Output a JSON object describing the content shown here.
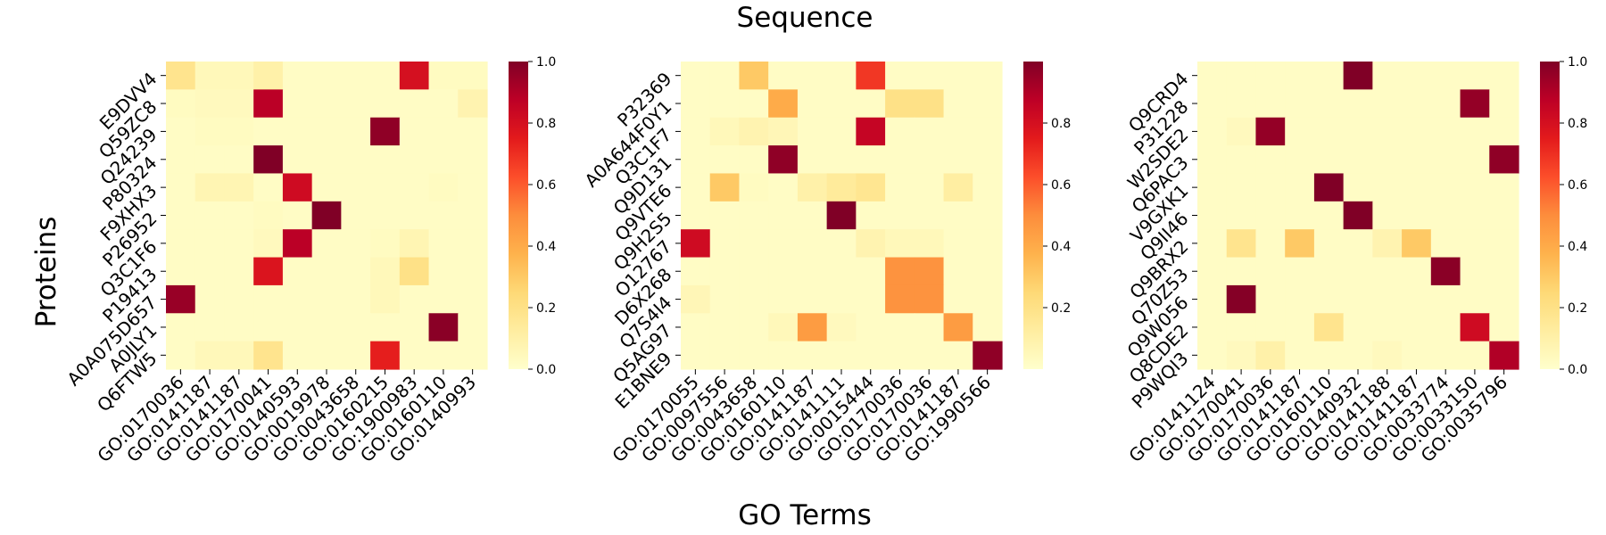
{
  "figure": {
    "title": "Sequence",
    "xlabel": "GO Terms",
    "ylabel": "Proteins"
  },
  "colormap": {
    "name": "YlOrRd",
    "stops": [
      "#ffffcc",
      "#ffeda0",
      "#fed976",
      "#feb24c",
      "#fd8d3c",
      "#fc4e2a",
      "#e31a1c",
      "#bd0026",
      "#800026"
    ]
  },
  "chart_data": [
    {
      "type": "heatmap",
      "rows": [
        "E9DVV4",
        "Q59ZC8",
        "Q24239",
        "P80324",
        "F9XHX3",
        "P26952",
        "Q3C1F6",
        "P19413",
        "A0A075D657",
        "A0JLY1",
        "Q6FTW5"
      ],
      "columns": [
        "GO:0170036",
        "GO:0141187",
        "GO:0141187",
        "GO:0170041",
        "GO:0140593",
        "GO:0019978",
        "GO:0043658",
        "GO:0160215",
        "GO:1900983",
        "GO:0160110",
        "GO:0140993"
      ],
      "values": [
        [
          0.18,
          0.05,
          0.05,
          0.1,
          0.02,
          0.02,
          0.02,
          0.02,
          0.8,
          0.03,
          0.03
        ],
        [
          0.03,
          0.04,
          0.04,
          0.88,
          0.02,
          0.02,
          0.02,
          0.02,
          0.02,
          0.02,
          0.08
        ],
        [
          0.02,
          0.03,
          0.03,
          0.02,
          0.02,
          0.02,
          0.02,
          0.97,
          0.02,
          0.02,
          0.02
        ],
        [
          0.02,
          0.02,
          0.02,
          1.0,
          0.02,
          0.02,
          0.02,
          0.02,
          0.02,
          0.02,
          0.02
        ],
        [
          0.02,
          0.07,
          0.07,
          0.02,
          0.82,
          0.02,
          0.02,
          0.02,
          0.02,
          0.03,
          0.02
        ],
        [
          0.02,
          0.02,
          0.02,
          0.03,
          0.02,
          1.0,
          0.02,
          0.02,
          0.02,
          0.02,
          0.02
        ],
        [
          0.02,
          0.02,
          0.02,
          0.04,
          0.88,
          0.02,
          0.02,
          0.03,
          0.07,
          0.02,
          0.02
        ],
        [
          0.02,
          0.02,
          0.02,
          0.78,
          0.02,
          0.02,
          0.02,
          0.05,
          0.2,
          0.02,
          0.02
        ],
        [
          0.95,
          0.02,
          0.02,
          0.02,
          0.02,
          0.02,
          0.02,
          0.05,
          0.02,
          0.02,
          0.02
        ],
        [
          0.02,
          0.02,
          0.02,
          0.02,
          0.02,
          0.02,
          0.02,
          0.02,
          0.02,
          0.98,
          0.02
        ],
        [
          0.02,
          0.05,
          0.05,
          0.18,
          0.02,
          0.02,
          0.02,
          0.74,
          0.02,
          0.02,
          0.02
        ]
      ],
      "colorbar": {
        "vmin": 0.0,
        "vmax": 1.0,
        "ticks": [
          0.0,
          0.2,
          0.4,
          0.6,
          0.8,
          1.0
        ],
        "tick_labels": [
          "0.0",
          "0.2",
          "0.4",
          "0.6",
          "0.8",
          "1.0"
        ]
      }
    },
    {
      "type": "heatmap",
      "rows": [
        "P32369",
        "A0A644F0Y1",
        "Q3C1F7",
        "Q9D131",
        "Q9VTE6",
        "Q9H2S5",
        "O12767",
        "D6X268",
        "Q7S4I4",
        "Q5AG97",
        "E1BNE9"
      ],
      "columns": [
        "GO:0170055",
        "GO:0097556",
        "GO:0043658",
        "GO:0160110",
        "GO:0141187",
        "GO:0141111",
        "GO:0015444",
        "GO:0170036",
        "GO:0170036",
        "GO:0141187",
        "GO:1990566"
      ],
      "values": [
        [
          0.02,
          0.02,
          0.3,
          0.02,
          0.02,
          0.02,
          0.68,
          0.02,
          0.02,
          0.02,
          0.02
        ],
        [
          0.02,
          0.02,
          0.02,
          0.4,
          0.02,
          0.02,
          0.02,
          0.2,
          0.2,
          0.02,
          0.02
        ],
        [
          0.02,
          0.05,
          0.08,
          0.06,
          0.02,
          0.02,
          0.85,
          0.02,
          0.02,
          0.02,
          0.02
        ],
        [
          0.02,
          0.02,
          0.02,
          0.97,
          0.02,
          0.02,
          0.02,
          0.02,
          0.02,
          0.02,
          0.02
        ],
        [
          0.02,
          0.3,
          0.03,
          0.02,
          0.1,
          0.14,
          0.17,
          0.02,
          0.02,
          0.12,
          0.02
        ],
        [
          0.02,
          0.02,
          0.02,
          0.02,
          0.02,
          1.0,
          0.02,
          0.02,
          0.02,
          0.02,
          0.02
        ],
        [
          0.82,
          0.02,
          0.02,
          0.02,
          0.02,
          0.02,
          0.08,
          0.05,
          0.05,
          0.02,
          0.02
        ],
        [
          0.02,
          0.02,
          0.02,
          0.02,
          0.02,
          0.02,
          0.02,
          0.48,
          0.48,
          0.02,
          0.02
        ],
        [
          0.06,
          0.02,
          0.02,
          0.02,
          0.02,
          0.02,
          0.02,
          0.48,
          0.48,
          0.02,
          0.02
        ],
        [
          0.02,
          0.02,
          0.02,
          0.05,
          0.45,
          0.04,
          0.02,
          0.02,
          0.02,
          0.45,
          0.02
        ],
        [
          0.02,
          0.02,
          0.02,
          0.02,
          0.02,
          0.02,
          0.02,
          0.02,
          0.02,
          0.02,
          0.97
        ]
      ],
      "colorbar": {
        "vmin": 0.0,
        "vmax": 1.0,
        "ticks": [
          0.2,
          0.4,
          0.6,
          0.8
        ],
        "tick_labels": [
          "0.2",
          "0.4",
          "0.6",
          "0.8"
        ]
      }
    },
    {
      "type": "heatmap",
      "rows": [
        "Q9CRD4",
        "P31228",
        "W2SDE2",
        "Q6PAC3",
        "V9GXK1",
        "Q9II46",
        "Q9BRX2",
        "Q70Z53",
        "Q9W056",
        "Q8CDE2",
        "P9WQI3"
      ],
      "columns": [
        "GO:0141124",
        "GO:0170041",
        "GO:0170036",
        "GO:0141187",
        "GO:0160110",
        "GO:0140932",
        "GO:0141188",
        "GO:0141187",
        "GO:0033774",
        "GO:0033150",
        "GO:0035796"
      ],
      "values": [
        [
          0.02,
          0.02,
          0.02,
          0.02,
          0.02,
          1.0,
          0.02,
          0.02,
          0.02,
          0.02,
          0.02
        ],
        [
          0.02,
          0.02,
          0.02,
          0.02,
          0.02,
          0.02,
          0.02,
          0.02,
          0.02,
          0.96,
          0.02
        ],
        [
          0.02,
          0.04,
          0.96,
          0.02,
          0.02,
          0.02,
          0.02,
          0.02,
          0.02,
          0.02,
          0.02
        ],
        [
          0.02,
          0.02,
          0.02,
          0.02,
          0.02,
          0.02,
          0.02,
          0.02,
          0.02,
          0.02,
          0.97
        ],
        [
          0.02,
          0.02,
          0.02,
          0.02,
          1.0,
          0.02,
          0.02,
          0.02,
          0.02,
          0.02,
          0.02
        ],
        [
          0.02,
          0.02,
          0.02,
          0.02,
          0.02,
          1.0,
          0.02,
          0.02,
          0.02,
          0.02,
          0.02
        ],
        [
          0.02,
          0.18,
          0.02,
          0.3,
          0.02,
          0.02,
          0.08,
          0.3,
          0.02,
          0.02,
          0.02
        ],
        [
          0.02,
          0.02,
          0.02,
          0.02,
          0.02,
          0.02,
          0.02,
          0.02,
          0.98,
          0.02,
          0.02
        ],
        [
          0.02,
          0.99,
          0.02,
          0.02,
          0.02,
          0.02,
          0.02,
          0.02,
          0.02,
          0.02,
          0.02
        ],
        [
          0.02,
          0.02,
          0.02,
          0.02,
          0.18,
          0.02,
          0.02,
          0.02,
          0.02,
          0.82,
          0.02
        ],
        [
          0.02,
          0.04,
          0.1,
          0.02,
          0.02,
          0.02,
          0.04,
          0.02,
          0.02,
          0.02,
          0.9
        ]
      ],
      "colorbar": {
        "vmin": 0.0,
        "vmax": 1.0,
        "ticks": [
          0.0,
          0.2,
          0.4,
          0.6,
          0.8,
          1.0
        ],
        "tick_labels": [
          "0.0",
          "0.2",
          "0.4",
          "0.6",
          "0.8",
          "1.0"
        ]
      }
    }
  ]
}
